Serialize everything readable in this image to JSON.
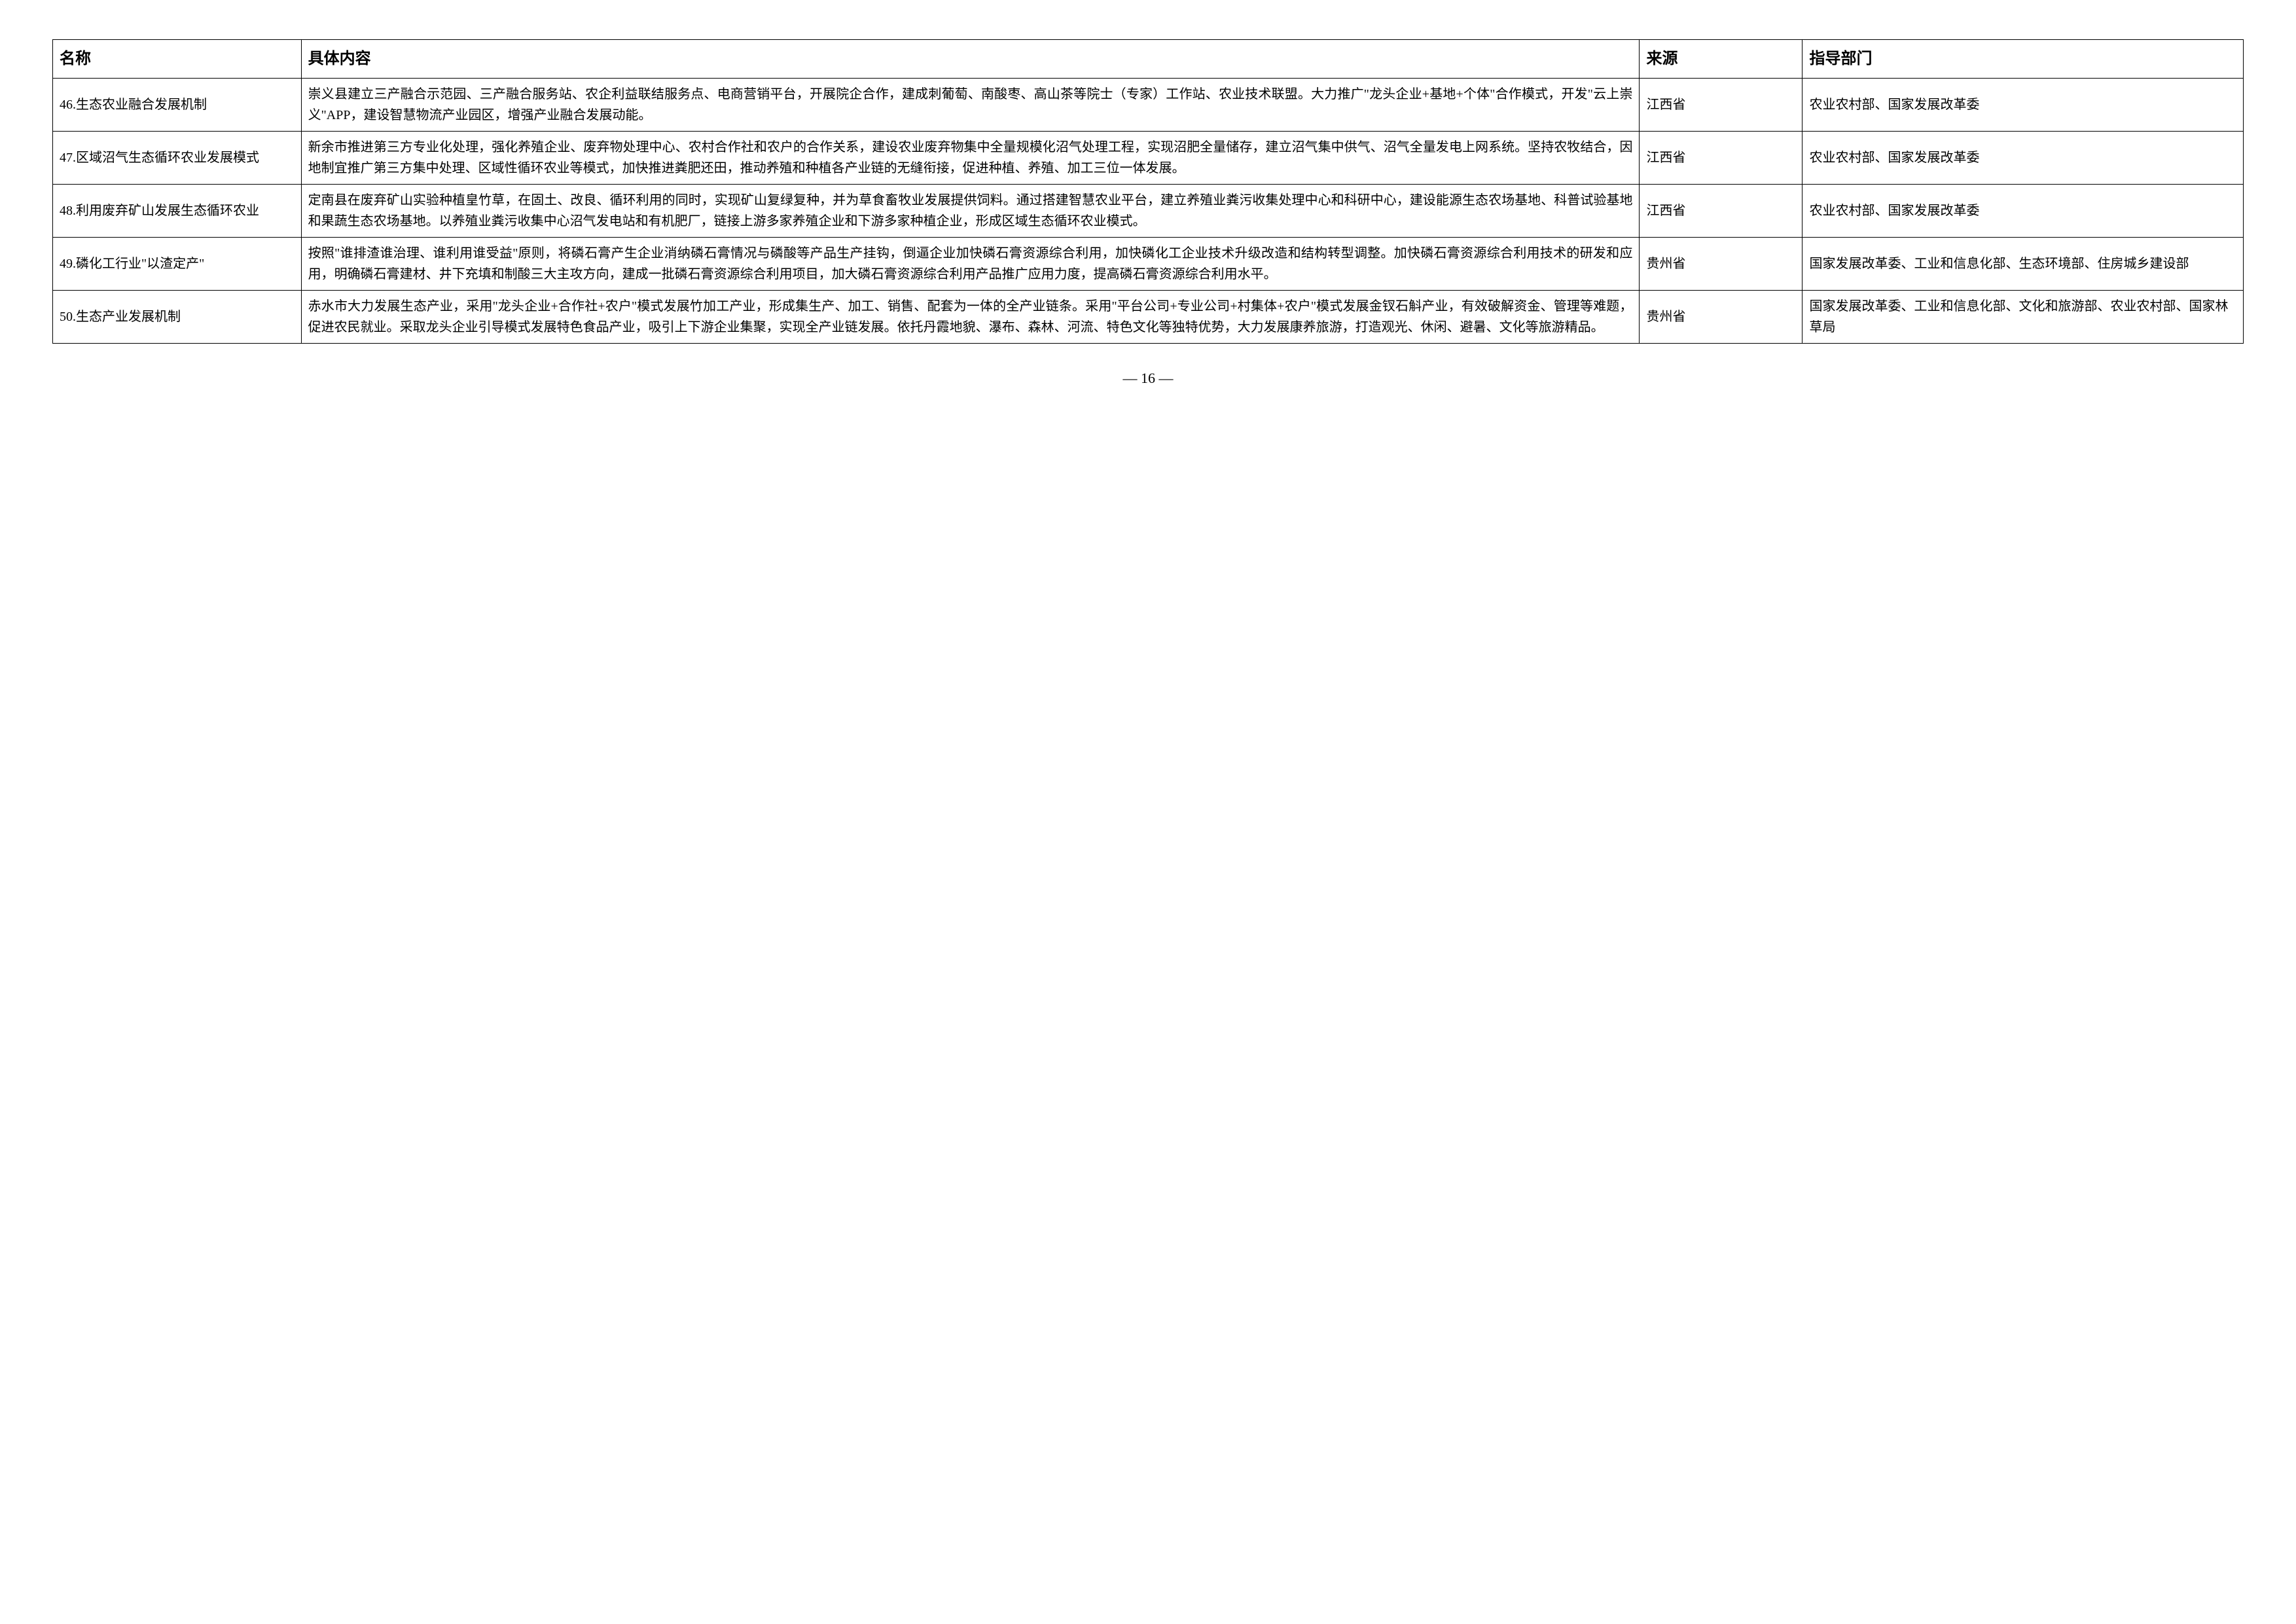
{
  "table": {
    "headers": {
      "name": "名称",
      "content": "具体内容",
      "source": "来源",
      "department": "指导部门"
    },
    "rows": [
      {
        "name": "46.生态农业融合发展机制",
        "content": "崇义县建立三产融合示范园、三产融合服务站、农企利益联结服务点、电商营销平台，开展院企合作，建成刺葡萄、南酸枣、高山茶等院士（专家）工作站、农业技术联盟。大力推广\"龙头企业+基地+个体\"合作模式，开发\"云上崇义\"APP，建设智慧物流产业园区，增强产业融合发展动能。",
        "source": "江西省",
        "department": "农业农村部、国家发展改革委"
      },
      {
        "name": "47.区域沼气生态循环农业发展模式",
        "content": "新余市推进第三方专业化处理，强化养殖企业、废弃物处理中心、农村合作社和农户的合作关系，建设农业废弃物集中全量规模化沼气处理工程，实现沼肥全量储存，建立沼气集中供气、沼气全量发电上网系统。坚持农牧结合，因地制宜推广第三方集中处理、区域性循环农业等模式，加快推进粪肥还田，推动养殖和种植各产业链的无缝衔接，促进种植、养殖、加工三位一体发展。",
        "source": "江西省",
        "department": "农业农村部、国家发展改革委"
      },
      {
        "name": "48.利用废弃矿山发展生态循环农业",
        "content": "定南县在废弃矿山实验种植皇竹草，在固土、改良、循环利用的同时，实现矿山复绿复种，并为草食畜牧业发展提供饲料。通过搭建智慧农业平台，建立养殖业粪污收集处理中心和科研中心，建设能源生态农场基地、科普试验基地和果蔬生态农场基地。以养殖业粪污收集中心沼气发电站和有机肥厂，链接上游多家养殖企业和下游多家种植企业，形成区域生态循环农业模式。",
        "source": "江西省",
        "department": "农业农村部、国家发展改革委"
      },
      {
        "name": "49.磷化工行业\"以渣定产\"",
        "content": "按照\"谁排渣谁治理、谁利用谁受益\"原则，将磷石膏产生企业消纳磷石膏情况与磷酸等产品生产挂钩，倒逼企业加快磷石膏资源综合利用，加快磷化工企业技术升级改造和结构转型调整。加快磷石膏资源综合利用技术的研发和应用，明确磷石膏建材、井下充填和制酸三大主攻方向，建成一批磷石膏资源综合利用项目，加大磷石膏资源综合利用产品推广应用力度，提高磷石膏资源综合利用水平。",
        "source": "贵州省",
        "department": "国家发展改革委、工业和信息化部、生态环境部、住房城乡建设部"
      },
      {
        "name": "50.生态产业发展机制",
        "content": "赤水市大力发展生态产业，采用\"龙头企业+合作社+农户\"模式发展竹加工产业，形成集生产、加工、销售、配套为一体的全产业链条。采用\"平台公司+专业公司+村集体+农户\"模式发展金钗石斛产业，有效破解资金、管理等难题，促进农民就业。采取龙头企业引导模式发展特色食品产业，吸引上下游企业集聚，实现全产业链发展。依托丹霞地貌、瀑布、森林、河流、特色文化等独特优势，大力发展康养旅游，打造观光、休闲、避暑、文化等旅游精品。",
        "source": "贵州省",
        "department": "国家发展改革委、工业和信息化部、文化和旅游部、农业农村部、国家林草局"
      }
    ]
  },
  "pageNumber": "— 16 —"
}
